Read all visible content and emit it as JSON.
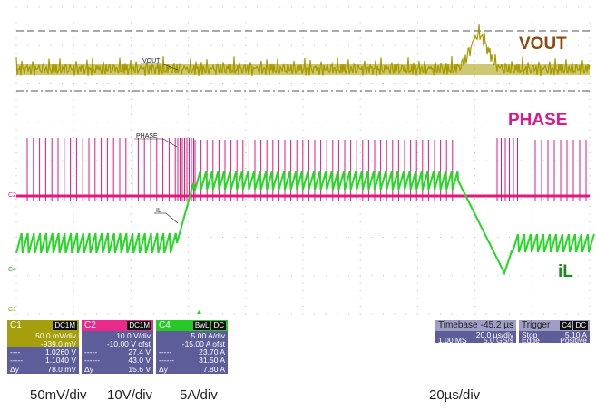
{
  "traces": {
    "vout": {
      "label": "VOUT",
      "color": "#a69a00",
      "title_color": "#8b4a12"
    },
    "phase": {
      "label": "PHASE",
      "color": "#e0197e",
      "title_color": "#d81b87"
    },
    "il": {
      "label": "iL",
      "color": "#27d627",
      "small_label": "IL",
      "title_color": "#1e8a1e"
    },
    "markers": {
      "c1": "C1",
      "c2": "C2",
      "c4": "C4"
    }
  },
  "channel_panels": [
    {
      "name": "C1",
      "badges": [
        "DC1M"
      ],
      "volts_per_div": "50.0 mV/div",
      "offset": "-939.0 mV",
      "cursor1": "1.0260 V",
      "cursor2": "1.1040 V",
      "dy_label": "Δy",
      "dy": "78.0 mV"
    },
    {
      "name": "C2",
      "badges": [
        "DC1M"
      ],
      "volts_per_div": "10.0 V/div",
      "offset": "-10.00 V ofst",
      "cursor1": "27.4 V",
      "cursor2": "43.0 V",
      "dy_label": "Δy",
      "dy": "15.6 V"
    },
    {
      "name": "C4",
      "badges": [
        "BwL",
        "DC"
      ],
      "volts_per_div": "5.00 A/div",
      "offset": "-15.00 A ofst",
      "cursor1": "23.70 A",
      "cursor2": "31.50 A",
      "dy_label": "Δy",
      "dy": "7.80 A"
    }
  ],
  "timebase": {
    "label": "Timebase",
    "value": "-45.2 µs",
    "per_div": "20.0 µs/div",
    "samples": "1.00 MS",
    "rate": "5.0 GS/s"
  },
  "trigger": {
    "label": "Trigger",
    "badges": [
      "C4",
      "DC"
    ],
    "mode": "Stop",
    "level": "5.10 A",
    "type": "Edge",
    "slope": "Positive"
  },
  "bottom_labels": {
    "ch1": "50mV/div",
    "ch2": "10V/div",
    "ch4": "5A/div",
    "time": "20µs/div"
  }
}
